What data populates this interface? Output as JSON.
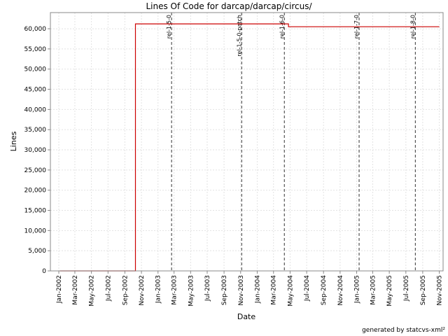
{
  "chart_data": {
    "type": "line",
    "title": "Lines Of Code for darcap/darcap/circus/",
    "xlabel": "Date",
    "ylabel": "Lines",
    "ylim": [
      0,
      64000
    ],
    "xlim": [
      "2001-12-01",
      "2005-11-15"
    ],
    "grid": true,
    "y_ticks": [
      0,
      5000,
      10000,
      15000,
      20000,
      25000,
      30000,
      35000,
      40000,
      45000,
      50000,
      55000,
      60000
    ],
    "y_tick_labels": [
      "0",
      "5,000",
      "10,000",
      "15,000",
      "20,000",
      "25,000",
      "30,000",
      "35,000",
      "40,000",
      "45,000",
      "50,000",
      "55,000",
      "60,000"
    ],
    "x_ticks": [
      "2002-01-01",
      "2002-03-01",
      "2002-05-01",
      "2002-07-01",
      "2002-09-01",
      "2002-11-01",
      "2003-01-01",
      "2003-03-01",
      "2003-05-01",
      "2003-07-01",
      "2003-09-01",
      "2003-11-01",
      "2004-01-01",
      "2004-03-01",
      "2004-05-01",
      "2004-07-01",
      "2004-09-01",
      "2004-11-01",
      "2005-01-01",
      "2005-03-01",
      "2005-05-01",
      "2005-07-01",
      "2005-09-01",
      "2005-11-01"
    ],
    "x_tick_labels": [
      "Jan-2002",
      "Mar-2002",
      "May-2002",
      "Jul-2002",
      "Sep-2002",
      "Nov-2002",
      "Jan-2003",
      "Mar-2003",
      "May-2003",
      "Jul-2003",
      "Sep-2003",
      "Nov-2003",
      "Jan-2004",
      "Mar-2004",
      "May-2004",
      "Jul-2004",
      "Sep-2004",
      "Nov-2004",
      "Jan-2005",
      "Mar-2005",
      "May-2005",
      "Jul-2005",
      "Sep-2005",
      "Nov-2005"
    ],
    "series": [
      {
        "color": "#cc0000",
        "points": [
          {
            "x": "2002-01-05",
            "y": 0
          },
          {
            "x": "2002-10-10",
            "y": 0
          },
          {
            "x": "2002-10-10",
            "y": 61200
          },
          {
            "x": "2004-04-25",
            "y": 61200
          },
          {
            "x": "2004-04-25",
            "y": 60500
          },
          {
            "x": "2005-11-01",
            "y": 60500
          }
        ]
      }
    ],
    "markers": [
      {
        "x": "2003-02-20",
        "label": "rel-1-5-0"
      },
      {
        "x": "2003-11-05",
        "label": "rel-1-5-0-patch"
      },
      {
        "x": "2004-04-10",
        "label": "rel-1-6-0"
      },
      {
        "x": "2005-01-10",
        "label": "rel-1-7-0"
      },
      {
        "x": "2005-08-05",
        "label": "rel-1-8-0"
      }
    ],
    "marker_color": "#555555"
  },
  "footer": {
    "text": "generated by statcvs-xml²"
  }
}
